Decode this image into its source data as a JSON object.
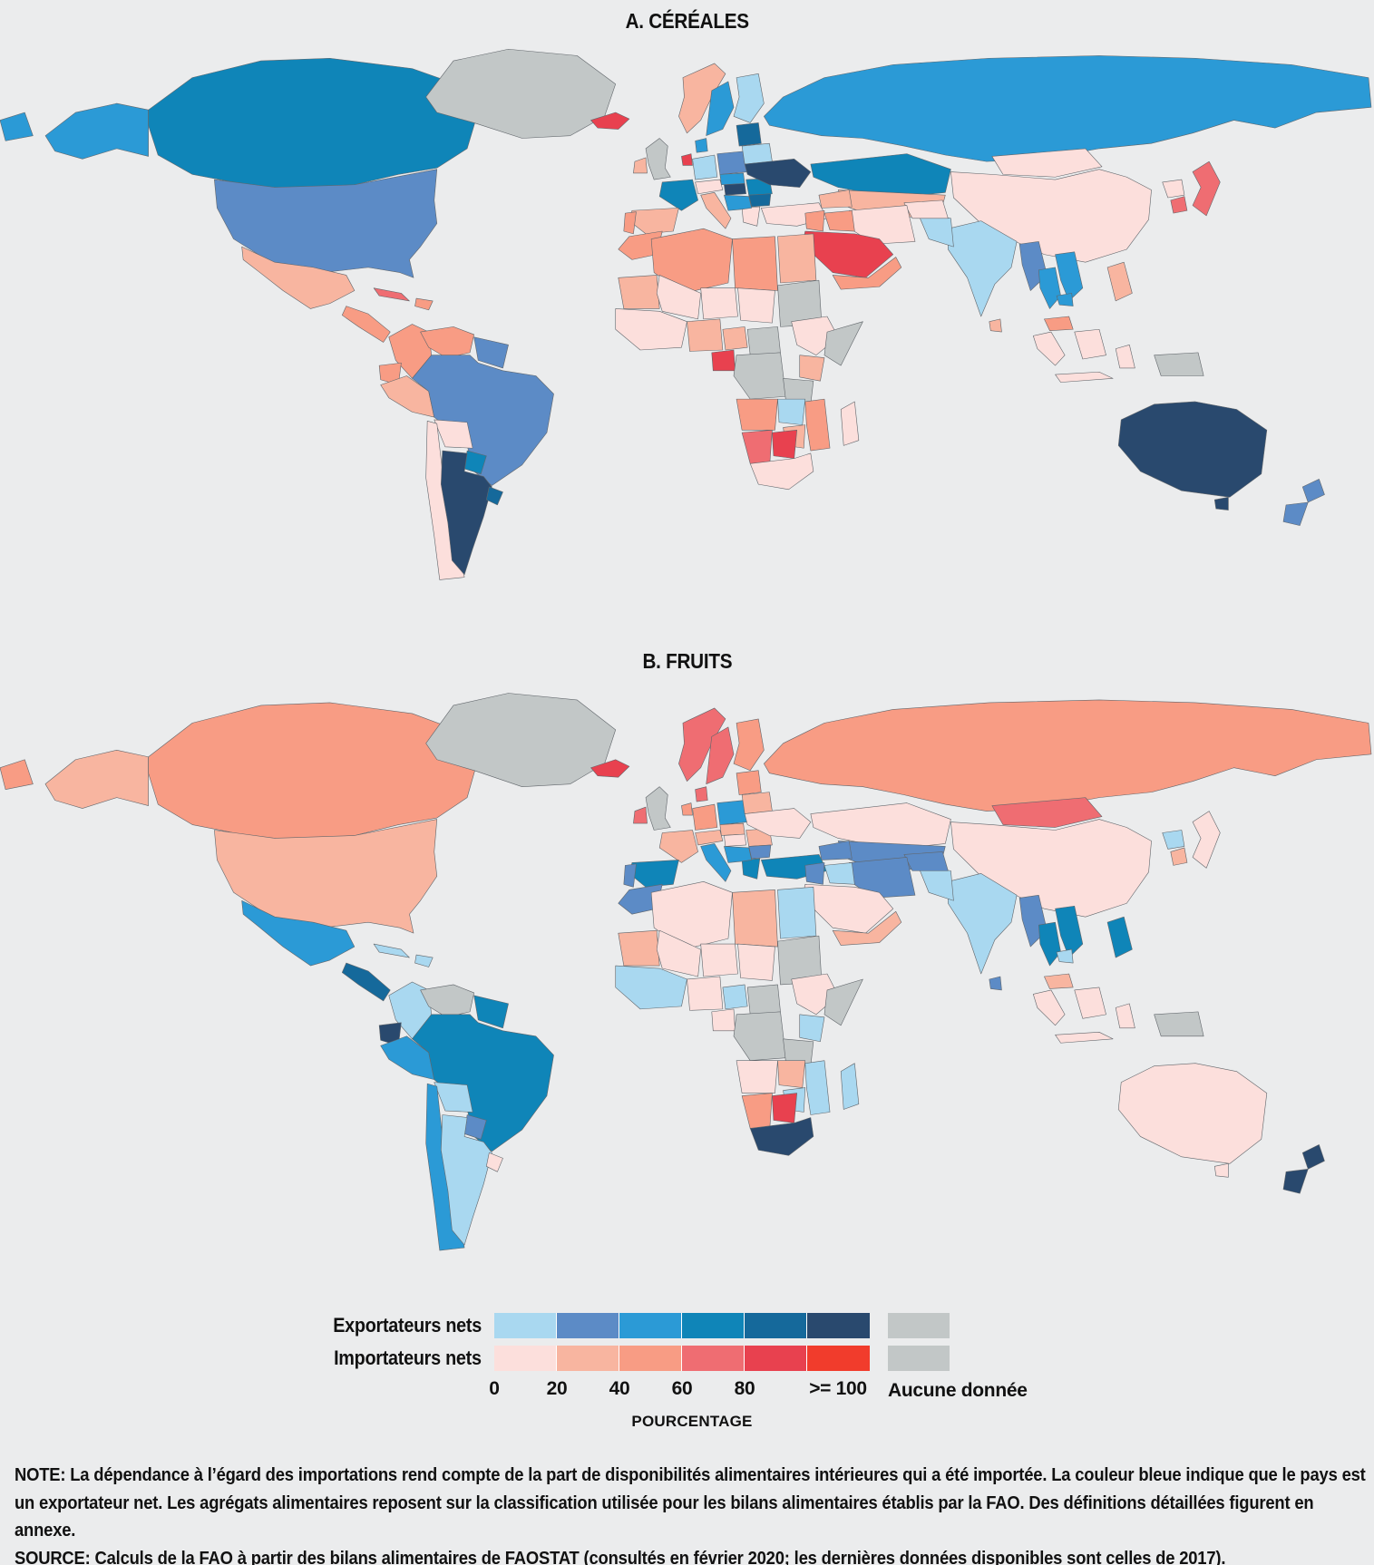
{
  "figure": {
    "panel_a_title": "A. CÉRÉALES",
    "panel_b_title": "B. FRUITS"
  },
  "legend": {
    "exporters_label": "Exportateurs nets",
    "importers_label": "Importateurs nets",
    "scale_ticks": [
      "0",
      "20",
      "40",
      "60",
      "80",
      ">= 100"
    ],
    "scale_label": "POURCENTAGE",
    "no_data_label": "Aucune donnée",
    "colors": {
      "blue": [
        "#a9d8f0",
        "#5c8bc6",
        "#2b9ad6",
        "#0f85b8",
        "#15699b",
        "#29496e"
      ],
      "red": [
        "#fcdfdc",
        "#f8b5a0",
        "#f89c84",
        "#ef6d72",
        "#e8414f",
        "#f13c2c"
      ],
      "no_data": "#c2c7c7"
    }
  },
  "note": "NOTE: La dépendance à l’égard des importations rend compte de la part de disponibilités alimentaires intérieures qui a été importée. La couleur bleue indique que le pays est un exportateur net. Les agrégats alimentaires reposent sur la classification utilisée pour les bilans alimentaires établis par la FAO. Des définitions détaillées figurent en annexe.",
  "source": "SOURCE: Calculs de la FAO à partir des bilans alimentaires de FAOSTAT (consultés en février 2020; les dernières données disponibles sont celles de 2017).",
  "chart_data": {
    "type": "heatmap",
    "subtype": "choropleth-world-map",
    "unit_label": "POURCENTAGE",
    "scale_ticks": [
      "0",
      "20",
      "40",
      "60",
      "80",
      ">= 100"
    ],
    "class_encoding": "b1..b6 = exportateurs nets par tranche de pourcentage (0-20, 20-40, 40-60, 60-80, 80-100, >=100); r1..r6 = importateurs nets mêmes tranches; nd = aucune donnée",
    "legend_position": "bottom-center",
    "panels": [
      {
        "id": "cereales",
        "title": "A. CÉRÉALES",
        "regions": {
          "alaska": "b3",
          "canada": "b4",
          "greenland": "nd",
          "usa": "b2",
          "mexico": "r2",
          "camerica": "r3",
          "cuba": "r4",
          "hispaniola": "r3",
          "colombia": "r3",
          "venezuela": "r3",
          "guyanas": "b2",
          "ecuador": "r3",
          "peru": "r2",
          "brazil": "b2",
          "bolivia": "r1",
          "paraguay": "b4",
          "chile": "r1",
          "argentina": "b6",
          "uruguay": "b5",
          "iceland": "r5",
          "uk": "nd",
          "ireland": "r2",
          "norway": "r2",
          "sweden": "b3",
          "finland": "b1",
          "denmark": "b3",
          "netherlands": "r5",
          "germany": "b1",
          "france": "b4",
          "spain": "r2",
          "portugal": "r3",
          "italy": "r2",
          "alpine": "r1",
          "poland": "b2",
          "czesk": "b3",
          "hungary": "b6",
          "romania": "b4",
          "bulgaria": "b5",
          "greece": "r1",
          "balkans": "b3",
          "baltics": "b5",
          "belarus": "b1",
          "ukraine": "b6",
          "turkey": "r1",
          "russia": "b3",
          "chukotka": "b3",
          "kazakhstan": "b4",
          "centralasia": "r2",
          "caucasus": "r2",
          "mongolia": "r1",
          "china": "r1",
          "japan": "r4",
          "skorea": "r4",
          "nkorea": "r1",
          "india": "b1",
          "srilanka": "r2",
          "pakistan": "b1",
          "afghanistan": "r1",
          "iran": "r1",
          "iraq": "r3",
          "levant": "r3",
          "saudi": "r5",
          "yemenoman": "r3",
          "myanmar": "b2",
          "thailand": "b3",
          "vietnam": "b3",
          "cambodia": "b3",
          "malaysia": "r3",
          "indonesia": "r1",
          "png": "nd",
          "philippines": "r2",
          "morocco": "r3",
          "algeria": "r3",
          "libya": "r3",
          "egypt": "r2",
          "mauritania": "r2",
          "mali": "r1",
          "niger": "r1",
          "chad": "r1",
          "sudan": "nd",
          "westafrica": "r1",
          "nigeria": "r2",
          "cameroon": "r2",
          "gabon": "r5",
          "car": "nd",
          "ethiopia": "r1",
          "somalia": "nd",
          "kenya": "r2",
          "drc": "nd",
          "tanzania": "nd",
          "angola": "r3",
          "zambia": "b1",
          "mozambique": "r3",
          "zimbabwe": "r2",
          "namibia": "r4",
          "botswana": "r5",
          "southafrica": "r1",
          "madagascar": "r1",
          "australia": "b6",
          "tasmania": "b6",
          "nz": "b2"
        }
      },
      {
        "id": "fruits",
        "title": "B. FRUITS",
        "regions": {
          "alaska": "r2",
          "canada": "r3",
          "greenland": "nd",
          "usa": "r2",
          "mexico": "b3",
          "camerica": "b5",
          "cuba": "b1",
          "hispaniola": "b1",
          "colombia": "b1",
          "venezuela": "nd",
          "guyanas": "b4",
          "ecuador": "b6",
          "peru": "b3",
          "brazil": "b4",
          "bolivia": "b1",
          "paraguay": "b2",
          "chile": "b3",
          "argentina": "b1",
          "uruguay": "r1",
          "iceland": "r5",
          "uk": "nd",
          "ireland": "r4",
          "norway": "r4",
          "sweden": "r4",
          "finland": "r3",
          "denmark": "r4",
          "netherlands": "r3",
          "germany": "r3",
          "france": "r2",
          "spain": "b4",
          "portugal": "b2",
          "italy": "b3",
          "alpine": "r2",
          "poland": "b3",
          "czesk": "r2",
          "hungary": "r1",
          "romania": "r2",
          "bulgaria": "b2",
          "greece": "b4",
          "balkans": "b3",
          "baltics": "r3",
          "belarus": "r2",
          "ukraine": "r1",
          "turkey": "b4",
          "russia": "r3",
          "chukotka": "r3",
          "kazakhstan": "r1",
          "centralasia": "b2",
          "caucasus": "b2",
          "mongolia": "r4",
          "china": "r1",
          "japan": "r1",
          "skorea": "r2",
          "nkorea": "b1",
          "india": "b1",
          "srilanka": "b2",
          "pakistan": "b1",
          "afghanistan": "b2",
          "iran": "b2",
          "iraq": "b1",
          "levant": "b2",
          "saudi": "r1",
          "yemenoman": "r2",
          "myanmar": "b2",
          "thailand": "b4",
          "vietnam": "b4",
          "cambodia": "b1",
          "malaysia": "r2",
          "indonesia": "r1",
          "png": "nd",
          "philippines": "b4",
          "morocco": "b2",
          "algeria": "r1",
          "libya": "r2",
          "egypt": "b1",
          "mauritania": "r2",
          "mali": "r1",
          "niger": "r1",
          "chad": "r1",
          "sudan": "nd",
          "westafrica": "b1",
          "nigeria": "r1",
          "cameroon": "b1",
          "gabon": "r1",
          "car": "nd",
          "ethiopia": "r1",
          "somalia": "nd",
          "kenya": "b1",
          "drc": "nd",
          "tanzania": "nd",
          "angola": "r1",
          "zambia": "r2",
          "mozambique": "b1",
          "zimbabwe": "b1",
          "namibia": "r3",
          "botswana": "r5",
          "southafrica": "b6",
          "madagascar": "b1",
          "australia": "r1",
          "tasmania": "r1",
          "nz": "b6"
        }
      }
    ]
  }
}
